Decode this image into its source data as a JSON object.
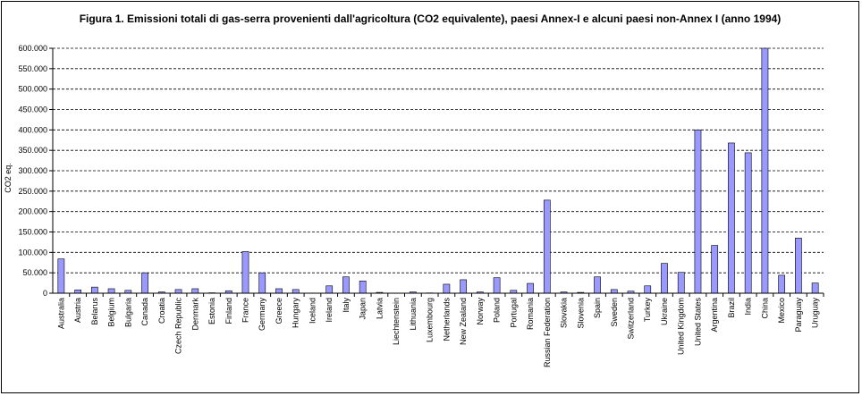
{
  "chart_data": {
    "type": "bar",
    "title": "Figura 1. Emissioni totali di gas-serra provenienti dall'agricoltura (CO2 equivalente), paesi Annex-I e alcuni paesi non-Annex I (anno 1994)",
    "xlabel": "",
    "ylabel": "CO2 eq.",
    "ylim": [
      0,
      600000
    ],
    "yticks": [
      "0",
      "50.000",
      "100.000",
      "150.000",
      "200.000",
      "250.000",
      "300.000",
      "350.000",
      "400.000",
      "450.000",
      "500.000",
      "550.000",
      "600.000"
    ],
    "grid": true,
    "legend": "none",
    "bar_color": "#9999ff",
    "categories": [
      "Australia",
      "Austria",
      "Belarus",
      "Belgium",
      "Bulgaria",
      "Canada",
      "Croatia",
      "Czech Republic",
      "Denmark",
      "Estonia",
      "Finland",
      "France",
      "Germany",
      "Greece",
      "Hungary",
      "Iceland",
      "Ireland",
      "Italy",
      "Japan",
      "Latvia",
      "Liechtenstein",
      "Lithuania",
      "Luxembourg",
      "Netherlands",
      "New Zealand",
      "Norway",
      "Poland",
      "Portugal",
      "Romania",
      "Russian Federation",
      "Slovakia",
      "Slovenia",
      "Spain",
      "Sweden",
      "Switzerland",
      "Turkey",
      "Ukraine",
      "United Kingdom",
      "United States",
      "Argentina",
      "Brazil",
      "India",
      "China",
      "Mexico",
      "Paraguay",
      "Uruguay"
    ],
    "values": [
      84000,
      8000,
      15000,
      11000,
      7000,
      50000,
      3000,
      9000,
      11000,
      1000,
      6000,
      102000,
      50000,
      11000,
      9000,
      500,
      18000,
      40000,
      30000,
      2000,
      200,
      3000,
      700,
      22000,
      33000,
      3000,
      38000,
      7000,
      24000,
      228000,
      3000,
      2000,
      40000,
      9000,
      5000,
      18000,
      73000,
      51000,
      400000,
      117000,
      368000,
      344000,
      605000,
      44000,
      135000,
      25000
    ]
  }
}
